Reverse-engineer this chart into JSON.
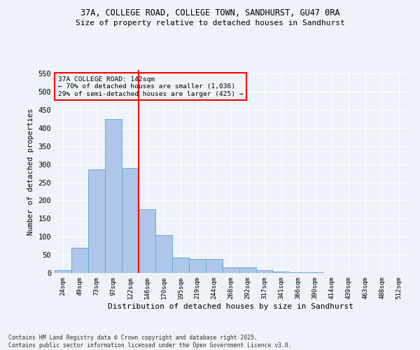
{
  "title_line1": "37A, COLLEGE ROAD, COLLEGE TOWN, SANDHURST, GU47 0RA",
  "title_line2": "Size of property relative to detached houses in Sandhurst",
  "xlabel": "Distribution of detached houses by size in Sandhurst",
  "ylabel": "Number of detached properties",
  "categories": [
    "24sqm",
    "49sqm",
    "73sqm",
    "97sqm",
    "122sqm",
    "146sqm",
    "170sqm",
    "195sqm",
    "219sqm",
    "244sqm",
    "268sqm",
    "292sqm",
    "317sqm",
    "341sqm",
    "366sqm",
    "390sqm",
    "414sqm",
    "439sqm",
    "463sqm",
    "488sqm",
    "512sqm"
  ],
  "values": [
    7,
    70,
    285,
    425,
    290,
    175,
    105,
    42,
    38,
    38,
    15,
    15,
    7,
    4,
    2,
    1,
    0,
    0,
    0,
    0,
    0
  ],
  "bar_color": "#aec6e8",
  "bar_edge_color": "#6aaad4",
  "vline_color": "red",
  "vline_position": 4.5,
  "annotation_title": "37A COLLEGE ROAD: 142sqm",
  "annotation_line1": "← 70% of detached houses are smaller (1,036)",
  "annotation_line2": "29% of semi-detached houses are larger (425) →",
  "annotation_box_color": "red",
  "background_color": "#eef2f9",
  "ylim": [
    0,
    560
  ],
  "yticks": [
    0,
    50,
    100,
    150,
    200,
    250,
    300,
    350,
    400,
    450,
    500,
    550
  ],
  "footer_line1": "Contains HM Land Registry data © Crown copyright and database right 2025.",
  "footer_line2": "Contains public sector information licensed under the Open Government Licence v3.0."
}
